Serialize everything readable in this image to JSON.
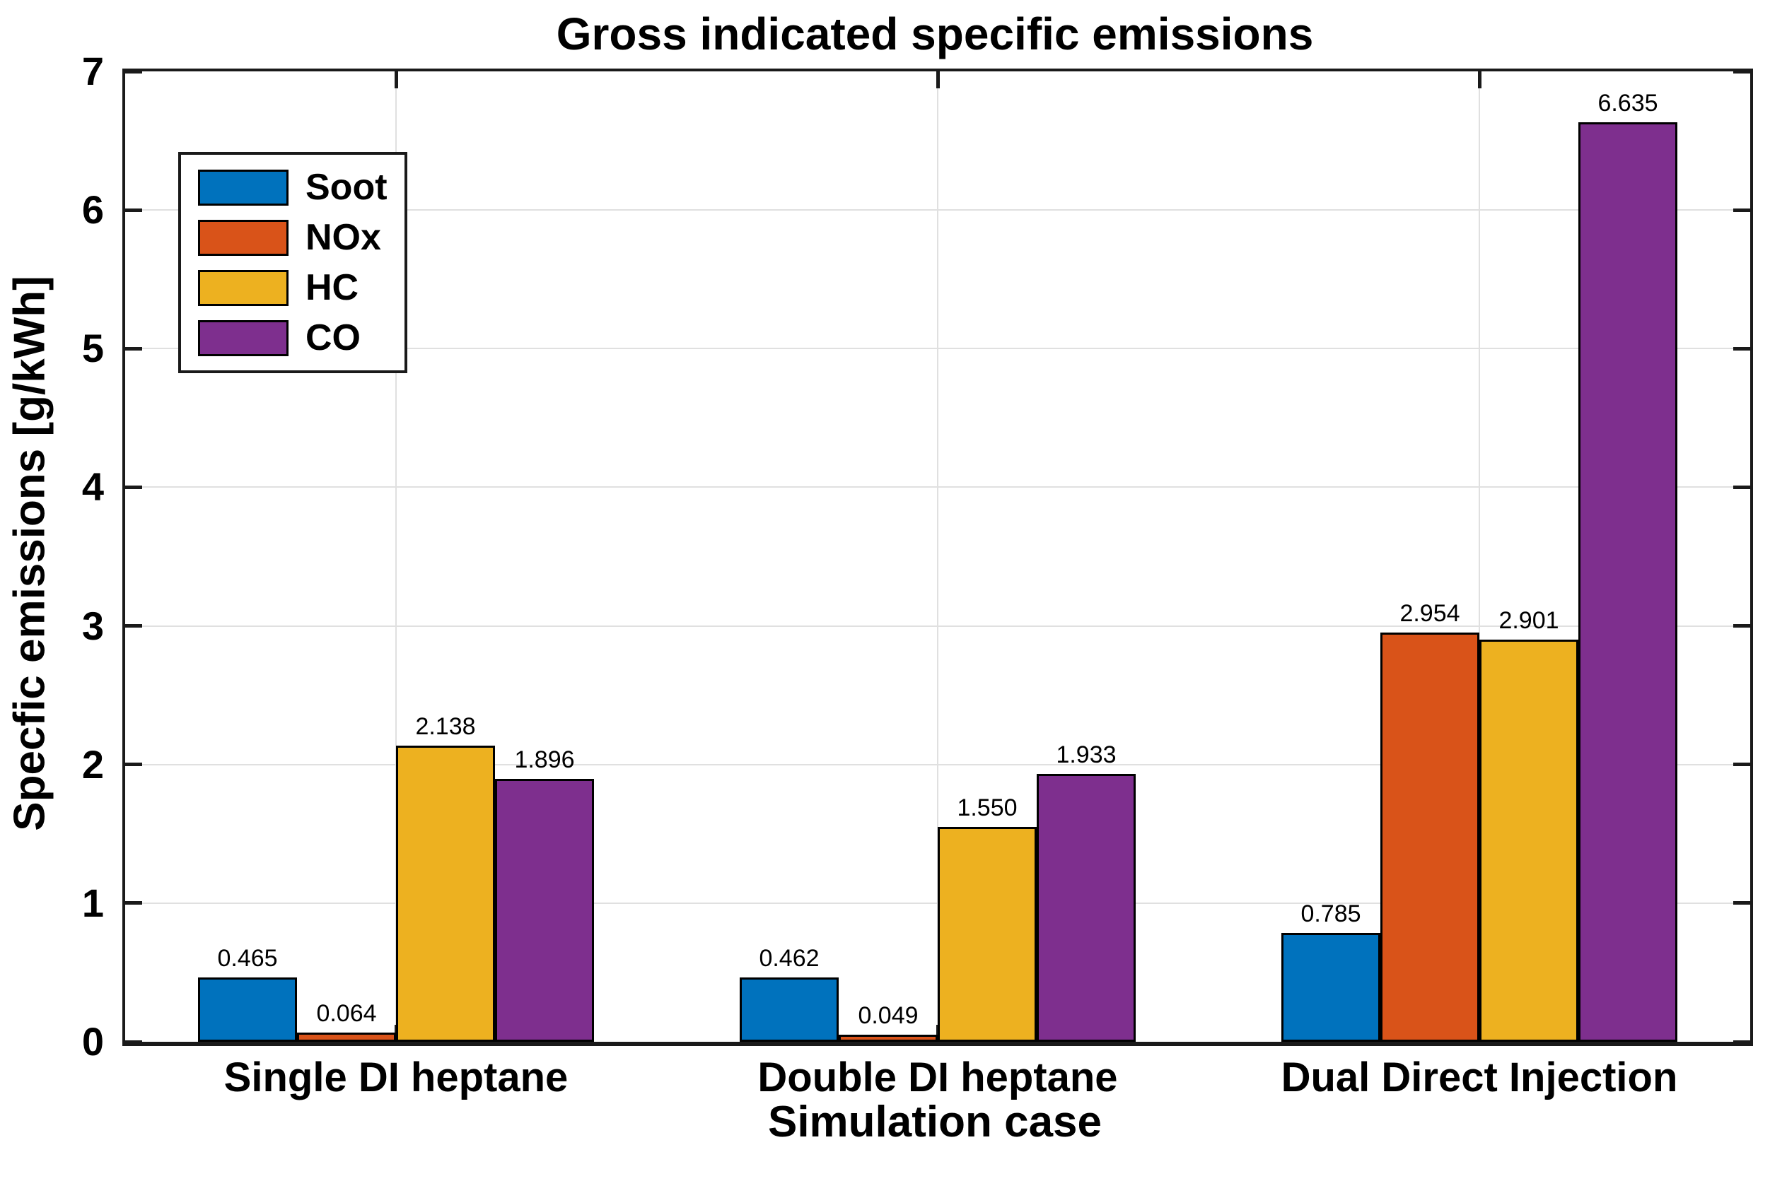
{
  "chart_data": {
    "type": "bar",
    "title": "Gross indicated specific emissions",
    "xlabel": "Simulation case",
    "ylabel": "Specfic emissions [g/kWh]",
    "categories": [
      "Single DI heptane",
      "Double DI heptane",
      "Dual Direct Injection"
    ],
    "series": [
      {
        "name": "Soot",
        "color": "#0072BD",
        "values": [
          0.465,
          0.462,
          0.785
        ]
      },
      {
        "name": "NOx",
        "color": "#D95319",
        "values": [
          0.064,
          0.049,
          2.954
        ]
      },
      {
        "name": "HC",
        "color": "#EDB120",
        "values": [
          2.138,
          1.55,
          2.901
        ]
      },
      {
        "name": "CO",
        "color": "#7E2F8E",
        "values": [
          1.896,
          1.933,
          6.635
        ]
      }
    ],
    "value_label_decimals": 3,
    "ylim": [
      0,
      7
    ],
    "yticks": [
      0,
      1,
      2,
      3,
      4,
      5,
      6,
      7
    ],
    "grid": true,
    "legend_position": "top-left-inside",
    "bar_edge_color": "#000000",
    "axis_color": "#1a1a1a",
    "grid_color": "#e0e0e0",
    "background_color": "#ffffff"
  }
}
